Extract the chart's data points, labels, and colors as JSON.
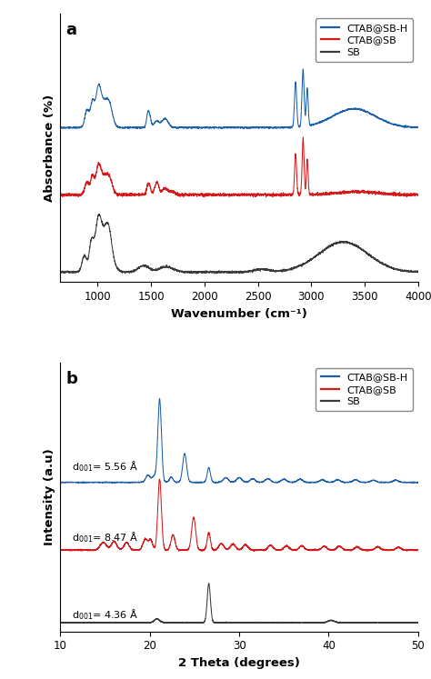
{
  "fig_width": 4.74,
  "fig_height": 7.47,
  "dpi": 100,
  "panel_a": {
    "label": "a",
    "xlabel": "Wavenumber (cm⁻¹)",
    "ylabel": "Absorbance (%)",
    "xlim": [
      650,
      4000
    ],
    "xticks": [
      1000,
      1500,
      2000,
      2500,
      3000,
      3500,
      4000
    ],
    "legend_labels": [
      "CTAB@SB-H",
      "CTAB@SB",
      "SB"
    ],
    "colors": [
      "#1a5fa8",
      "#d41a1a",
      "#3a3a3a"
    ]
  },
  "panel_b": {
    "label": "b",
    "xlabel": "2 Theta (degrees)",
    "ylabel": "Intensity (a.u)",
    "xlim": [
      10,
      50
    ],
    "xticks": [
      10,
      20,
      30,
      40,
      50
    ],
    "legend_labels": [
      "CTAB@SB-H",
      "CTAB@SB",
      "SB"
    ],
    "colors": [
      "#1a5fa8",
      "#d41a1a",
      "#3a3a3a"
    ],
    "ann_blue": "d$_{001}$= 5.56 Å",
    "ann_red": "d$_{001}$= 8.47 Å",
    "ann_black": "d$_{001}$= 4.36 Å"
  }
}
